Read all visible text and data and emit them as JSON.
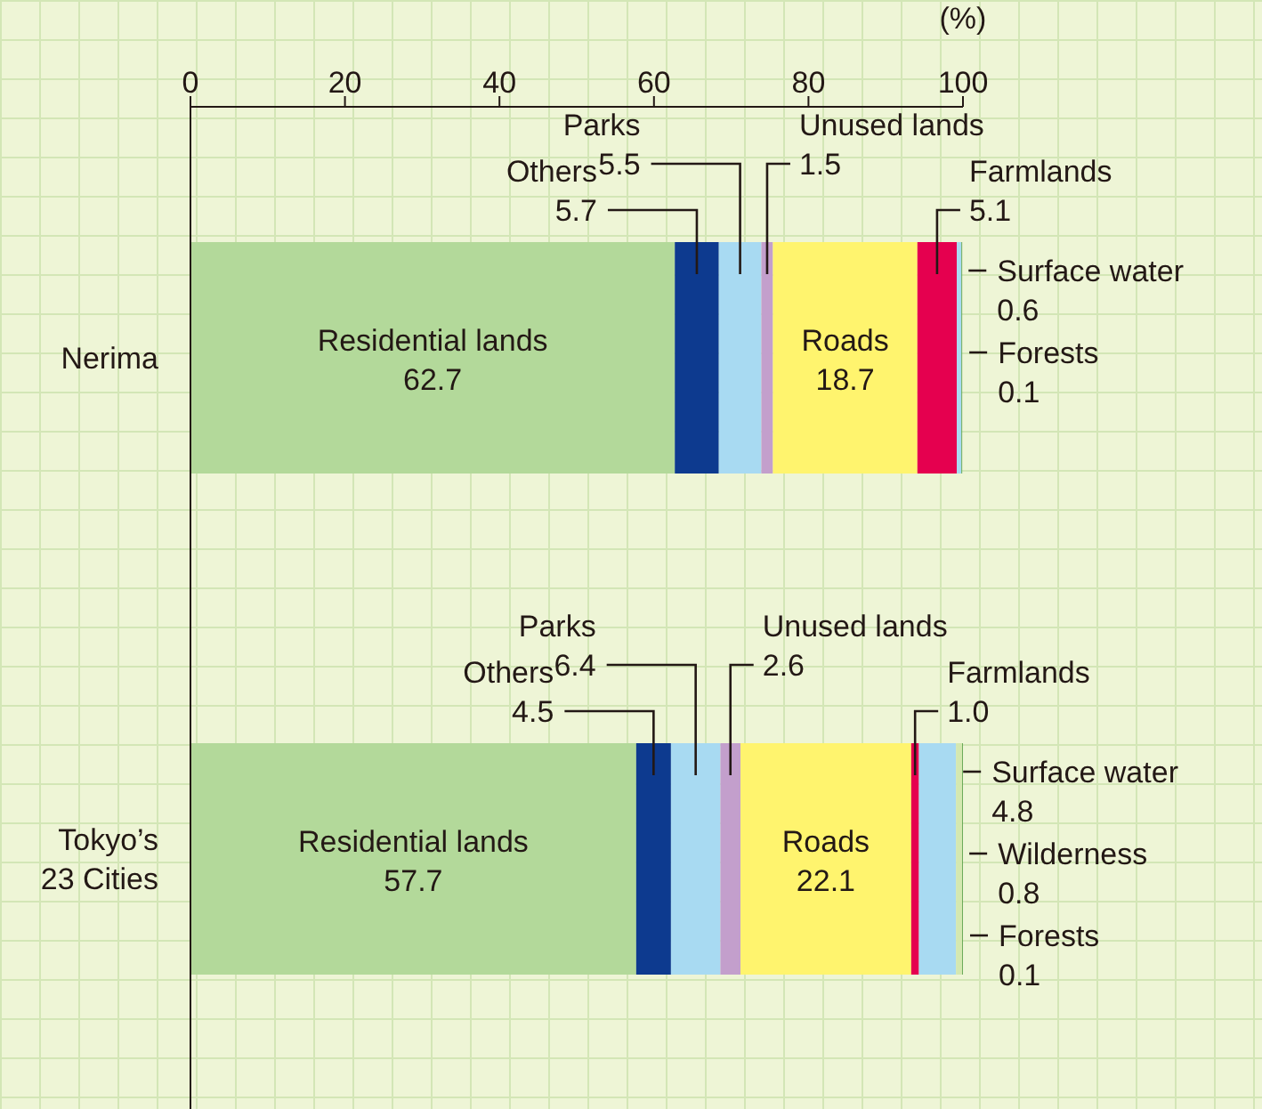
{
  "chart_data": {
    "type": "bar",
    "orientation": "horizontal",
    "stacked": true,
    "categories": [
      "Nerima",
      "Tokyo’s 23 Cities"
    ],
    "xlabel": "(%)",
    "xlim": [
      0,
      100
    ],
    "xticks": [
      0,
      20,
      40,
      60,
      80,
      100
    ],
    "grid": false,
    "legend": false,
    "series": [
      {
        "name": "Residential lands",
        "color": "#b3d99a",
        "values": [
          62.7,
          57.7
        ],
        "value_labels": [
          "62.7",
          "57.7"
        ]
      },
      {
        "name": "Others",
        "color": "#0d3a8f",
        "values": [
          5.7,
          4.5
        ],
        "value_labels": [
          "5.7",
          "4.5"
        ]
      },
      {
        "name": "Parks",
        "color": "#a8daf2",
        "values": [
          5.5,
          6.4
        ],
        "value_labels": [
          "5.5",
          "6.4"
        ]
      },
      {
        "name": "Unused lands",
        "color": "#c39fcc",
        "values": [
          1.5,
          2.6
        ],
        "value_labels": [
          "1.5",
          "2.6"
        ]
      },
      {
        "name": "Roads",
        "color": "#fff46e",
        "values": [
          18.7,
          22.1
        ],
        "value_labels": [
          "18.7",
          "22.1"
        ]
      },
      {
        "name": "Farmlands",
        "color": "#e5004f",
        "values": [
          5.1,
          1.0
        ],
        "value_labels": [
          "5.1",
          "1.0"
        ]
      },
      {
        "name": "Surface water",
        "color": "#a8daf2",
        "values": [
          0.6,
          4.8
        ],
        "value_labels": [
          "0.6",
          "4.8"
        ]
      },
      {
        "name": "Wilderness",
        "color": "#d4e8b0",
        "values": [
          null,
          0.8
        ],
        "value_labels": [
          null,
          "0.8"
        ]
      },
      {
        "name": "Forests",
        "color": "#5aa04a",
        "values": [
          0.1,
          0.1
        ],
        "value_labels": [
          "0.1",
          "0.1"
        ]
      }
    ]
  }
}
